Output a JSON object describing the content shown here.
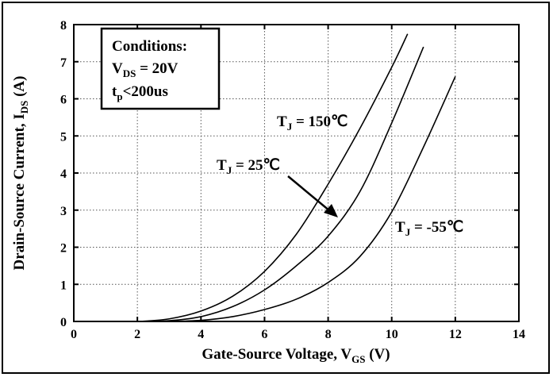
{
  "chart_data": {
    "type": "line",
    "xlabel": {
      "main": "Gate-Source Voltage, V",
      "sub": "GS",
      "unit": " (V)"
    },
    "ylabel": {
      "main": "Drain-Source Current, I",
      "sub": "DS",
      "unit": " (A)"
    },
    "xlim": [
      0,
      14
    ],
    "ylim": [
      0,
      8
    ],
    "xticks": [
      "0",
      "2",
      "4",
      "6",
      "8",
      "10",
      "12",
      "14"
    ],
    "yticks": [
      "0",
      "1",
      "2",
      "3",
      "4",
      "5",
      "6",
      "7",
      "8"
    ],
    "grid": true,
    "series": [
      {
        "name": "T_J = 150℃",
        "label": {
          "main": "T",
          "sub": "J",
          "rest": " = 150℃"
        },
        "x": [
          1.0,
          2.0,
          3.0,
          4.0,
          5.0,
          6.0,
          7.0,
          8.0,
          9.0,
          10.0,
          10.5
        ],
        "y": [
          0.0,
          0.0,
          0.07,
          0.28,
          0.68,
          1.35,
          2.35,
          3.7,
          5.2,
          6.85,
          7.75
        ]
      },
      {
        "name": "T_J = 25℃",
        "label": {
          "main": "T",
          "sub": "J",
          "rest": " = 25℃"
        },
        "x": [
          1.0,
          2.0,
          3.0,
          4.0,
          5.0,
          6.0,
          7.0,
          8.0,
          9.0,
          10.0,
          11.0
        ],
        "y": [
          0.0,
          0.0,
          0.02,
          0.13,
          0.4,
          0.85,
          1.5,
          2.3,
          3.5,
          5.35,
          7.4
        ]
      },
      {
        "name": "T_J = -55℃",
        "label": {
          "main": "T",
          "sub": "J",
          "rest": " = -55℃"
        },
        "x": [
          1.0,
          2.0,
          3.0,
          4.0,
          5.0,
          6.0,
          7.0,
          8.0,
          9.0,
          10.0,
          11.0,
          12.0
        ],
        "y": [
          0.0,
          0.0,
          0.0,
          0.03,
          0.13,
          0.32,
          0.6,
          1.05,
          1.75,
          2.95,
          4.7,
          6.6
        ]
      }
    ],
    "conditions": {
      "title": "Conditions:",
      "line1": {
        "main": "V",
        "sub": "DS",
        "rest": " = 20V"
      },
      "line2": {
        "main": "t",
        "sub": "p",
        "rest": "<200us"
      }
    }
  }
}
